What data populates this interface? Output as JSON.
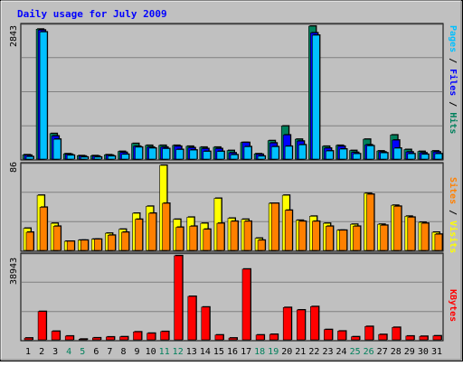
{
  "title": "Daily usage for July 2009",
  "colors": {
    "background": "#C0C0C0",
    "plot_background": "#C0C0C0",
    "title": "#0000FF",
    "hits": "#00805C",
    "files": "#0000FF",
    "pages": "#00C0FF",
    "visits": "#FFFF00",
    "sites": "#FF8000",
    "kbytes": "#FF0000",
    "axis_label_dark": "#000000",
    "weekend_label": "#00805C",
    "grid": "#808080"
  },
  "chart_data": [
    {
      "type": "bar",
      "panel": "top",
      "y_max_label": "2843",
      "ylim": [
        0,
        2843
      ],
      "categories": [
        "1",
        "2",
        "3",
        "4",
        "5",
        "6",
        "7",
        "8",
        "9",
        "10",
        "11",
        "12",
        "13",
        "14",
        "15",
        "16",
        "17",
        "18",
        "19",
        "20",
        "21",
        "22",
        "23",
        "24",
        "25",
        "26",
        "27",
        "28",
        "29",
        "30",
        "31"
      ],
      "legend": [
        "Pages",
        "Files",
        "Hits"
      ],
      "series": [
        {
          "name": "Hits",
          "values": [
            110,
            2780,
            560,
            130,
            90,
            90,
            110,
            180,
            350,
            310,
            310,
            310,
            290,
            270,
            270,
            200,
            370,
            130,
            410,
            720,
            440,
            2843,
            290,
            310,
            200,
            440,
            190,
            530,
            220,
            180,
            190
          ]
        },
        {
          "name": "Files",
          "values": [
            100,
            2760,
            510,
            120,
            80,
            80,
            100,
            160,
            290,
            270,
            270,
            290,
            260,
            240,
            240,
            150,
            370,
            120,
            360,
            530,
            400,
            2700,
            250,
            290,
            160,
            320,
            170,
            420,
            170,
            150,
            170
          ]
        },
        {
          "name": "Pages",
          "values": [
            70,
            2720,
            440,
            100,
            60,
            60,
            80,
            120,
            270,
            250,
            240,
            220,
            210,
            180,
            180,
            110,
            280,
            80,
            280,
            290,
            320,
            2650,
            190,
            230,
            130,
            300,
            150,
            250,
            130,
            120,
            130
          ]
        }
      ]
    },
    {
      "type": "bar",
      "panel": "middle",
      "y_max_label": "86",
      "ylim": [
        0,
        86
      ],
      "categories": [
        "1",
        "2",
        "3",
        "4",
        "5",
        "6",
        "7",
        "8",
        "9",
        "10",
        "11",
        "12",
        "13",
        "14",
        "15",
        "16",
        "17",
        "18",
        "19",
        "20",
        "21",
        "22",
        "23",
        "24",
        "25",
        "26",
        "27",
        "28",
        "29",
        "30",
        "31"
      ],
      "legend": [
        "Sites",
        "Visits"
      ],
      "series": [
        {
          "name": "Visits",
          "values": [
            23,
            56,
            28,
            10,
            11,
            12,
            18,
            22,
            38,
            45,
            86,
            32,
            34,
            28,
            53,
            33,
            32,
            13,
            48,
            56,
            31,
            35,
            28,
            21,
            27,
            58,
            27,
            46,
            35,
            29,
            19
          ]
        },
        {
          "name": "Sites",
          "values": [
            19,
            44,
            25,
            10,
            11,
            12,
            16,
            19,
            32,
            38,
            48,
            24,
            25,
            22,
            28,
            30,
            30,
            11,
            48,
            41,
            30,
            30,
            25,
            21,
            25,
            57,
            26,
            45,
            34,
            28,
            17
          ]
        }
      ]
    },
    {
      "type": "bar",
      "panel": "bottom",
      "y_max_label": "38943",
      "ylim": [
        0,
        38943
      ],
      "categories": [
        "1",
        "2",
        "3",
        "4",
        "5",
        "6",
        "7",
        "8",
        "9",
        "10",
        "11",
        "12",
        "13",
        "14",
        "15",
        "16",
        "17",
        "18",
        "19",
        "20",
        "21",
        "22",
        "23",
        "24",
        "25",
        "26",
        "27",
        "28",
        "29",
        "30",
        "31"
      ],
      "legend": [
        "KBytes"
      ],
      "series": [
        {
          "name": "KBytes",
          "values": [
            1200,
            13400,
            4300,
            2100,
            700,
            1300,
            1700,
            1800,
            4000,
            3400,
            4200,
            38943,
            20300,
            15400,
            2600,
            1200,
            32800,
            2600,
            2900,
            15200,
            14100,
            15600,
            5100,
            4400,
            1800,
            6500,
            2800,
            6100,
            2100,
            2000,
            2200
          ]
        }
      ]
    }
  ],
  "x_axis": {
    "labels": [
      "1",
      "2",
      "3",
      "4",
      "5",
      "6",
      "7",
      "8",
      "9",
      "10",
      "11",
      "12",
      "13",
      "14",
      "15",
      "16",
      "17",
      "18",
      "19",
      "20",
      "21",
      "22",
      "23",
      "24",
      "25",
      "26",
      "27",
      "28",
      "29",
      "30",
      "31"
    ],
    "weekend_days": [
      "4",
      "5",
      "11",
      "12",
      "18",
      "19",
      "25",
      "26"
    ]
  },
  "right_labels": {
    "top": [
      {
        "text": "Pages",
        "color": "#00C0FF"
      },
      {
        "text": " / ",
        "color": "#000000"
      },
      {
        "text": "Files",
        "color": "#0000FF"
      },
      {
        "text": " / ",
        "color": "#000000"
      },
      {
        "text": "Hits",
        "color": "#00805C"
      }
    ],
    "middle": [
      {
        "text": "Sites",
        "color": "#FF8000"
      },
      {
        "text": " / ",
        "color": "#000000"
      },
      {
        "text": "Visits",
        "color": "#FFFF00"
      }
    ],
    "bottom": [
      {
        "text": "KBytes",
        "color": "#FF0000"
      }
    ]
  }
}
